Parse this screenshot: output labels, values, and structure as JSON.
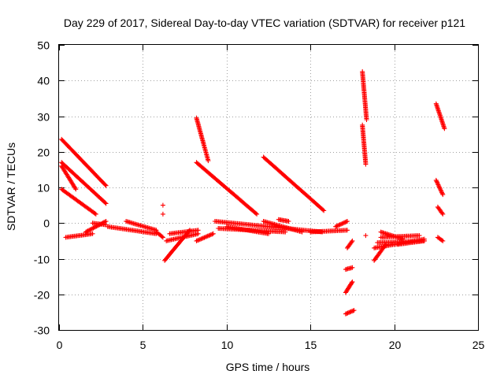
{
  "chart_data": {
    "type": "scatter",
    "title": "Day 229 of 2017, Sidereal Day-to-day VTEC variation (SDTVAR) for receiver p121",
    "xlabel": "GPS time / hours",
    "ylabel": "SDTVAR / TECUs",
    "xlim": [
      0,
      25
    ],
    "ylim": [
      -30,
      50
    ],
    "xticks": [
      0,
      5,
      10,
      15,
      20,
      25
    ],
    "yticks": [
      -30,
      -20,
      -10,
      0,
      10,
      20,
      30,
      40,
      50
    ],
    "grid": true,
    "marker": "+",
    "color": "#ff0000",
    "segments": [
      {
        "x0": 0.15,
        "y0": 23.5,
        "x1": 2.8,
        "y1": 10.5
      },
      {
        "x0": 0.15,
        "y0": 17.0,
        "x1": 2.8,
        "y1": 5.5
      },
      {
        "x0": 0.15,
        "y0": 16.0,
        "x1": 1.0,
        "y1": 9.5
      },
      {
        "x0": 0.15,
        "y0": 9.5,
        "x1": 2.2,
        "y1": 2.5
      },
      {
        "x0": 0.4,
        "y0": -4.0,
        "x1": 2.0,
        "y1": -3.0
      },
      {
        "x0": 1.6,
        "y0": -2.5,
        "x1": 2.8,
        "y1": 0.5
      },
      {
        "x0": 2.0,
        "y0": 0.0,
        "x1": 2.8,
        "y1": -0.5
      },
      {
        "x0": 2.9,
        "y0": -1.0,
        "x1": 5.8,
        "y1": -3.0
      },
      {
        "x0": 4.0,
        "y0": 0.5,
        "x1": 5.8,
        "y1": -2.0
      },
      {
        "x0": 5.8,
        "y0": -2.5,
        "x1": 6.2,
        "y1": -4.0
      },
      {
        "x0": 6.3,
        "y0": -10.5,
        "x1": 7.8,
        "y1": -2.0
      },
      {
        "x0": 6.4,
        "y0": -5.0,
        "x1": 8.3,
        "y1": -3.0
      },
      {
        "x0": 6.6,
        "y0": -3.0,
        "x1": 8.3,
        "y1": -2.0
      },
      {
        "x0": 8.2,
        "y0": -5.0,
        "x1": 9.2,
        "y1": -3.0
      },
      {
        "x0": 8.2,
        "y0": 29.5,
        "x1": 8.9,
        "y1": 17.5
      },
      {
        "x0": 8.2,
        "y0": 17.0,
        "x1": 11.8,
        "y1": 2.5
      },
      {
        "x0": 9.3,
        "y0": 0.5,
        "x1": 15.7,
        "y1": -2.5
      },
      {
        "x0": 9.5,
        "y0": -1.5,
        "x1": 13.5,
        "y1": -2.5
      },
      {
        "x0": 10.0,
        "y0": -1.0,
        "x1": 12.5,
        "y1": -3.0
      },
      {
        "x0": 12.2,
        "y0": 18.5,
        "x1": 15.8,
        "y1": 3.5
      },
      {
        "x0": 12.2,
        "y0": 0.5,
        "x1": 14.5,
        "y1": -2.5
      },
      {
        "x0": 13.1,
        "y0": 1.0,
        "x1": 13.7,
        "y1": 0.5
      },
      {
        "x0": 15.0,
        "y0": -2.5,
        "x1": 17.2,
        "y1": -2.0
      },
      {
        "x0": 16.5,
        "y0": -1.0,
        "x1": 17.2,
        "y1": 0.5
      },
      {
        "x0": 17.2,
        "y0": -7.0,
        "x1": 17.5,
        "y1": -5.0
      },
      {
        "x0": 17.1,
        "y0": -13.0,
        "x1": 17.5,
        "y1": -12.5
      },
      {
        "x0": 17.1,
        "y0": -19.5,
        "x1": 17.5,
        "y1": -16.5
      },
      {
        "x0": 17.1,
        "y0": -25.5,
        "x1": 17.6,
        "y1": -24.5
      },
      {
        "x0": 18.1,
        "y0": 42.5,
        "x1": 18.35,
        "y1": 29.0
      },
      {
        "x0": 18.1,
        "y0": 27.5,
        "x1": 18.3,
        "y1": 16.5
      },
      {
        "x0": 18.8,
        "y0": -10.5,
        "x1": 19.5,
        "y1": -6.0
      },
      {
        "x0": 18.8,
        "y0": -7.0,
        "x1": 21.8,
        "y1": -4.5
      },
      {
        "x0": 19.0,
        "y0": -5.5,
        "x1": 21.8,
        "y1": -5.0
      },
      {
        "x0": 19.2,
        "y0": -4.0,
        "x1": 21.5,
        "y1": -3.5
      },
      {
        "x0": 19.2,
        "y0": -2.5,
        "x1": 20.5,
        "y1": -4.5
      },
      {
        "x0": 20.2,
        "y0": -6.0,
        "x1": 21.8,
        "y1": -5.0
      },
      {
        "x0": 22.5,
        "y0": 33.5,
        "x1": 23.0,
        "y1": 26.5
      },
      {
        "x0": 22.5,
        "y0": 12.0,
        "x1": 22.9,
        "y1": 8.0
      },
      {
        "x0": 22.6,
        "y0": 4.5,
        "x1": 22.9,
        "y1": 2.5
      },
      {
        "x0": 22.6,
        "y0": -4.0,
        "x1": 22.9,
        "y1": -5.0
      }
    ],
    "points": [
      {
        "x": 6.2,
        "y": 5.0
      },
      {
        "x": 6.2,
        "y": 2.5
      },
      {
        "x": 18.3,
        "y": -3.5
      }
    ]
  }
}
